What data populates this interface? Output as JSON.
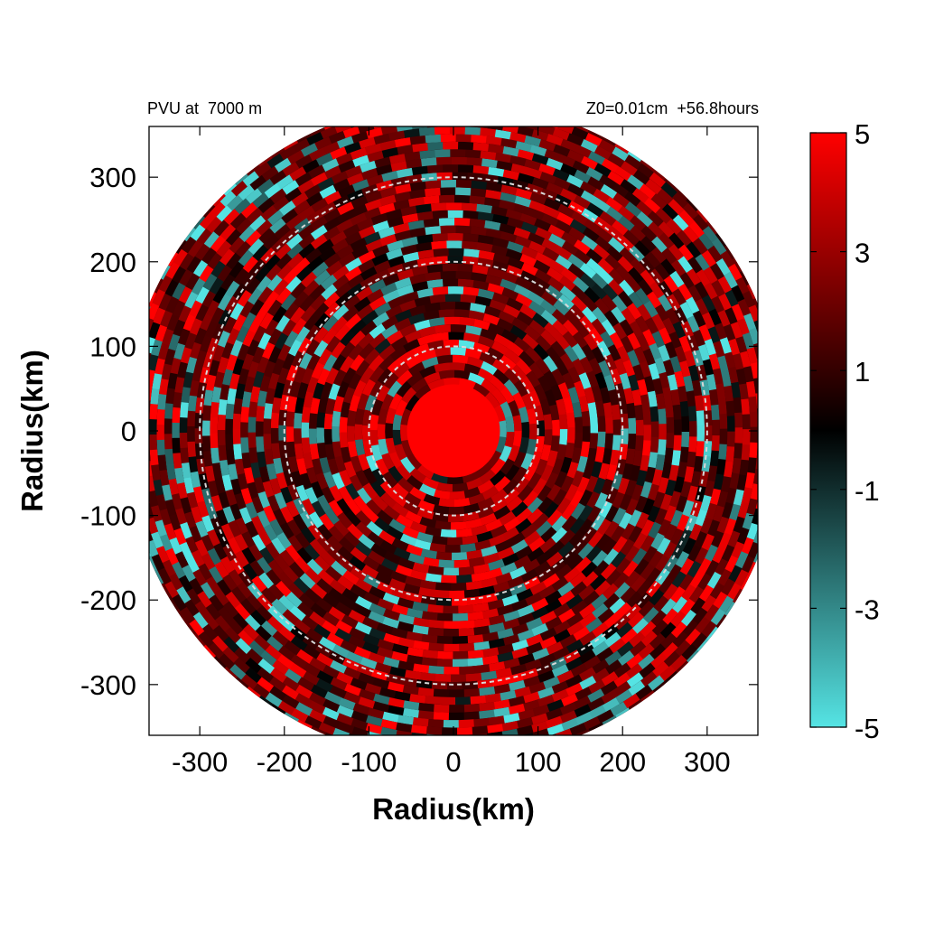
{
  "chart_data": {
    "type": "heatmap",
    "title_left": "PVU at  7000 m",
    "title_right": "Z0=0.01cm  +56.8hours",
    "xlabel": "Radius(km)",
    "ylabel": "Radius(km)",
    "xlim": [
      -360,
      360
    ],
    "ylim": [
      -360,
      360
    ],
    "x_ticks": [
      -300,
      -200,
      -100,
      0,
      100,
      200,
      300
    ],
    "y_ticks": [
      300,
      200,
      100,
      0,
      -100,
      -200,
      -300
    ],
    "x_tick_labels": [
      "-300",
      "-200",
      "-100",
      "0",
      "100",
      "200",
      "300"
    ],
    "y_tick_labels": [
      "300",
      "200",
      "100",
      "0",
      "-100",
      "-200",
      "-300"
    ],
    "data_extent_radius_km": 390,
    "reference_circles_km": [
      100,
      200,
      300
    ],
    "colorbar": {
      "min": -5,
      "max": 5,
      "ticks": [
        5,
        3,
        1,
        -1,
        -3,
        -5
      ],
      "tick_labels": [
        "5",
        "3",
        "1",
        "-1",
        "-3",
        "-5"
      ],
      "colors": {
        "min": "#55e4e4",
        "mid": "#000000",
        "max": "#ff0000"
      }
    },
    "features": {
      "core_radius_km": 55,
      "core_value": 5,
      "background_mean": 1.2,
      "negative_patch_fraction": 0.2
    }
  }
}
